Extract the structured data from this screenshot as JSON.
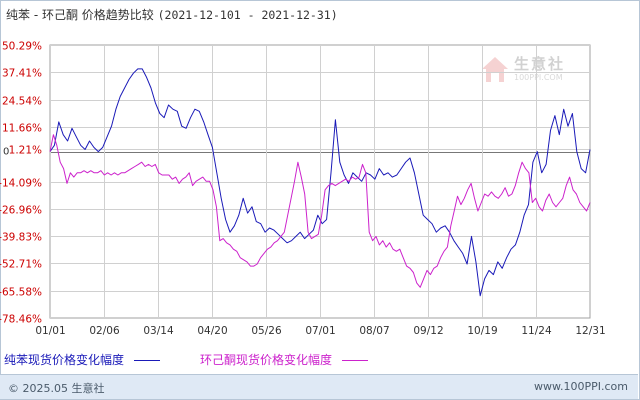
{
  "title": {
    "main": "纯苯 - 环己酮 价格趋势比较",
    "range": "(2021-12-101 - 2021-12-31)"
  },
  "watermark": {
    "name": "生意社",
    "site": "100PPI.COM"
  },
  "footer": {
    "copyright": "© 2025.05 生意社",
    "site": "www.100PPI.com"
  },
  "colors": {
    "benzene": "#1a1ab8",
    "cyclohexanone": "#cc22cc",
    "axis_label": "#cc0000",
    "grid": "#d0d0d0",
    "zero_line": "#777777"
  },
  "chart_data": {
    "type": "line",
    "title": "纯苯 - 环己酮 价格趋势比较",
    "xlabel": "",
    "ylabel": "",
    "grid": true,
    "legend_placement": "bottom",
    "ylim": [
      -78.46,
      50.29
    ],
    "yticks": [
      50.29,
      37.41,
      24.54,
      11.66,
      1.21,
      -14.09,
      -26.96,
      -39.83,
      -52.71,
      -65.58,
      -78.46
    ],
    "ytick_labels": [
      "50.29%",
      "37.41%",
      "24.54%",
      "11.66%",
      "1.21%",
      "-14.09%",
      "-26.96%",
      "-39.83%",
      "-52.71%",
      "-65.58%",
      "-78.46%"
    ],
    "zero_label": "0",
    "xtick_labels": [
      "01/01",
      "02/06",
      "03/14",
      "04/20",
      "05/26",
      "07/01",
      "08/07",
      "09/12",
      "10/19",
      "11/24",
      "12/31"
    ],
    "series": [
      {
        "name": "纯苯现货价格变化幅度",
        "color": "#1a1ab8",
        "points": [
          [
            0,
            0
          ],
          [
            1,
            3
          ],
          [
            2,
            14
          ],
          [
            3,
            8
          ],
          [
            4,
            5
          ],
          [
            5,
            11
          ],
          [
            6,
            7
          ],
          [
            7,
            3
          ],
          [
            8,
            1
          ],
          [
            9,
            5
          ],
          [
            10,
            2
          ],
          [
            11,
            0
          ],
          [
            12,
            2
          ],
          [
            13,
            7
          ],
          [
            14,
            12
          ],
          [
            15,
            20
          ],
          [
            16,
            26
          ],
          [
            17,
            30
          ],
          [
            18,
            34
          ],
          [
            19,
            37
          ],
          [
            20,
            39
          ],
          [
            21,
            39
          ],
          [
            22,
            35
          ],
          [
            23,
            30
          ],
          [
            24,
            23
          ],
          [
            25,
            18
          ],
          [
            26,
            16
          ],
          [
            27,
            22
          ],
          [
            28,
            20
          ],
          [
            29,
            19
          ],
          [
            30,
            12
          ],
          [
            31,
            11
          ],
          [
            32,
            16
          ],
          [
            33,
            20
          ],
          [
            34,
            19
          ],
          [
            35,
            14
          ],
          [
            36,
            8
          ],
          [
            37,
            2
          ],
          [
            38,
            -10
          ],
          [
            39,
            -22
          ],
          [
            40,
            -32
          ],
          [
            41,
            -38
          ],
          [
            42,
            -35
          ],
          [
            43,
            -30
          ],
          [
            44,
            -22
          ],
          [
            45,
            -29
          ],
          [
            46,
            -26
          ],
          [
            47,
            -33
          ],
          [
            48,
            -34
          ],
          [
            49,
            -38
          ],
          [
            50,
            -36
          ],
          [
            51,
            -37
          ],
          [
            52,
            -39
          ],
          [
            53,
            -41
          ],
          [
            54,
            -43
          ],
          [
            55,
            -42
          ],
          [
            56,
            -40
          ],
          [
            57,
            -38
          ],
          [
            58,
            -41
          ],
          [
            59,
            -39
          ],
          [
            60,
            -37
          ],
          [
            61,
            -30
          ],
          [
            62,
            -34
          ],
          [
            63,
            -32
          ],
          [
            64,
            -10
          ],
          [
            65,
            15
          ],
          [
            66,
            -5
          ],
          [
            67,
            -11
          ],
          [
            68,
            -15
          ],
          [
            69,
            -10
          ],
          [
            70,
            -12
          ],
          [
            71,
            -14
          ],
          [
            72,
            -10
          ],
          [
            73,
            -11
          ],
          [
            74,
            -13
          ],
          [
            75,
            -8
          ],
          [
            76,
            -11
          ],
          [
            77,
            -10
          ],
          [
            78,
            -12
          ],
          [
            79,
            -11
          ],
          [
            80,
            -8
          ],
          [
            81,
            -5
          ],
          [
            82,
            -3
          ],
          [
            83,
            -10
          ],
          [
            84,
            -20
          ],
          [
            85,
            -30
          ],
          [
            86,
            -32
          ],
          [
            87,
            -34
          ],
          [
            88,
            -38
          ],
          [
            89,
            -36
          ],
          [
            90,
            -35
          ],
          [
            91,
            -38
          ],
          [
            92,
            -42
          ],
          [
            93,
            -45
          ],
          [
            94,
            -48
          ],
          [
            95,
            -53
          ],
          [
            96,
            -40
          ],
          [
            97,
            -52
          ],
          [
            98,
            -68
          ],
          [
            99,
            -60
          ],
          [
            100,
            -56
          ],
          [
            101,
            -58
          ],
          [
            102,
            -52
          ],
          [
            103,
            -55
          ],
          [
            104,
            -50
          ],
          [
            105,
            -46
          ],
          [
            106,
            -44
          ],
          [
            107,
            -38
          ],
          [
            108,
            -30
          ],
          [
            109,
            -25
          ],
          [
            110,
            -5
          ],
          [
            111,
            0
          ],
          [
            112,
            -10
          ],
          [
            113,
            -6
          ],
          [
            114,
            10
          ],
          [
            115,
            17
          ],
          [
            116,
            8
          ],
          [
            117,
            20
          ],
          [
            118,
            12
          ],
          [
            119,
            18
          ],
          [
            120,
            0
          ],
          [
            121,
            -8
          ],
          [
            122,
            -10
          ],
          [
            123,
            1
          ]
        ]
      },
      {
        "name": "环己酮现货价格变化幅度",
        "color": "#cc22cc",
        "points": [
          [
            0,
            0
          ],
          [
            1,
            8
          ],
          [
            2,
            3
          ],
          [
            3,
            -5
          ],
          [
            4,
            -8
          ],
          [
            5,
            -15
          ],
          [
            6,
            -10
          ],
          [
            7,
            -12
          ],
          [
            8,
            -10
          ],
          [
            9,
            -10
          ],
          [
            10,
            -9
          ],
          [
            11,
            -10
          ],
          [
            12,
            -9
          ],
          [
            13,
            -10
          ],
          [
            14,
            -10
          ],
          [
            15,
            -9
          ],
          [
            16,
            -11
          ],
          [
            17,
            -10
          ],
          [
            18,
            -11
          ],
          [
            19,
            -10
          ],
          [
            20,
            -11
          ],
          [
            21,
            -10
          ],
          [
            22,
            -10
          ],
          [
            23,
            -9
          ],
          [
            24,
            -8
          ],
          [
            25,
            -7
          ],
          [
            26,
            -6
          ],
          [
            27,
            -5
          ],
          [
            28,
            -7
          ],
          [
            29,
            -6
          ],
          [
            30,
            -7
          ],
          [
            31,
            -6
          ],
          [
            32,
            -10
          ],
          [
            33,
            -11
          ],
          [
            34,
            -11
          ],
          [
            35,
            -11
          ],
          [
            36,
            -13
          ],
          [
            37,
            -12
          ],
          [
            38,
            -15
          ],
          [
            39,
            -13
          ],
          [
            40,
            -12
          ],
          [
            41,
            -10
          ],
          [
            42,
            -16
          ],
          [
            43,
            -14
          ],
          [
            44,
            -13
          ],
          [
            45,
            -12
          ],
          [
            46,
            -14
          ],
          [
            47,
            -14
          ],
          [
            48,
            -18
          ],
          [
            49,
            -26
          ],
          [
            50,
            -42
          ],
          [
            51,
            -41
          ],
          [
            52,
            -43
          ],
          [
            53,
            -44
          ],
          [
            54,
            -46
          ],
          [
            55,
            -47
          ],
          [
            56,
            -50
          ],
          [
            57,
            -51
          ],
          [
            58,
            -52
          ],
          [
            59,
            -54
          ],
          [
            60,
            -54
          ],
          [
            61,
            -53
          ],
          [
            62,
            -50
          ],
          [
            63,
            -48
          ],
          [
            64,
            -46
          ],
          [
            65,
            -45
          ],
          [
            66,
            -43
          ],
          [
            67,
            -42
          ],
          [
            68,
            -40
          ],
          [
            69,
            -38
          ],
          [
            70,
            -30
          ],
          [
            71,
            -22
          ],
          [
            72,
            -14
          ],
          [
            73,
            -5
          ],
          [
            74,
            -12
          ],
          [
            75,
            -20
          ],
          [
            76,
            -38
          ],
          [
            77,
            -41
          ],
          [
            78,
            -40
          ],
          [
            79,
            -39
          ],
          [
            80,
            -30
          ],
          [
            81,
            -18
          ],
          [
            82,
            -16
          ],
          [
            83,
            -15
          ],
          [
            84,
            -16
          ],
          [
            85,
            -15
          ],
          [
            86,
            -14
          ],
          [
            87,
            -13
          ],
          [
            88,
            -14
          ],
          [
            89,
            -12
          ],
          [
            90,
            -13
          ],
          [
            91,
            -12
          ],
          [
            92,
            -6
          ],
          [
            93,
            -10
          ],
          [
            94,
            -38
          ],
          [
            95,
            -42
          ],
          [
            96,
            -40
          ],
          [
            97,
            -44
          ],
          [
            98,
            -42
          ],
          [
            99,
            -45
          ],
          [
            100,
            -43
          ],
          [
            101,
            -46
          ],
          [
            102,
            -47
          ],
          [
            103,
            -46
          ],
          [
            104,
            -50
          ],
          [
            105,
            -54
          ],
          [
            106,
            -55
          ],
          [
            107,
            -57
          ],
          [
            108,
            -62
          ],
          [
            109,
            -64
          ],
          [
            110,
            -60
          ],
          [
            111,
            -56
          ],
          [
            112,
            -58
          ],
          [
            113,
            -55
          ],
          [
            114,
            -54
          ],
          [
            115,
            -50
          ],
          [
            116,
            -47
          ],
          [
            117,
            -45
          ],
          [
            118,
            -35
          ],
          [
            119,
            -28
          ],
          [
            120,
            -21
          ],
          [
            121,
            -25
          ],
          [
            122,
            -22
          ],
          [
            123,
            -18
          ],
          [
            124,
            -15
          ],
          [
            125,
            -22
          ],
          [
            126,
            -28
          ],
          [
            127,
            -24
          ],
          [
            128,
            -20
          ],
          [
            129,
            -21
          ],
          [
            130,
            -19
          ],
          [
            131,
            -21
          ],
          [
            132,
            -22
          ],
          [
            133,
            -20
          ],
          [
            134,
            -17
          ],
          [
            135,
            -21
          ],
          [
            136,
            -20
          ],
          [
            137,
            -16
          ],
          [
            138,
            -10
          ],
          [
            139,
            -5
          ],
          [
            140,
            -8
          ],
          [
            141,
            -10
          ],
          [
            142,
            -24
          ],
          [
            143,
            -22
          ],
          [
            144,
            -26
          ],
          [
            145,
            -28
          ],
          [
            146,
            -23
          ],
          [
            147,
            -20
          ],
          [
            148,
            -24
          ],
          [
            149,
            -26
          ],
          [
            150,
            -24
          ],
          [
            151,
            -22
          ],
          [
            152,
            -16
          ],
          [
            153,
            -12
          ],
          [
            154,
            -18
          ],
          [
            155,
            -20
          ],
          [
            156,
            -24
          ],
          [
            157,
            -26
          ],
          [
            158,
            -28
          ],
          [
            159,
            -24
          ]
        ]
      }
    ],
    "x_points_total": [
      123,
      159
    ]
  }
}
